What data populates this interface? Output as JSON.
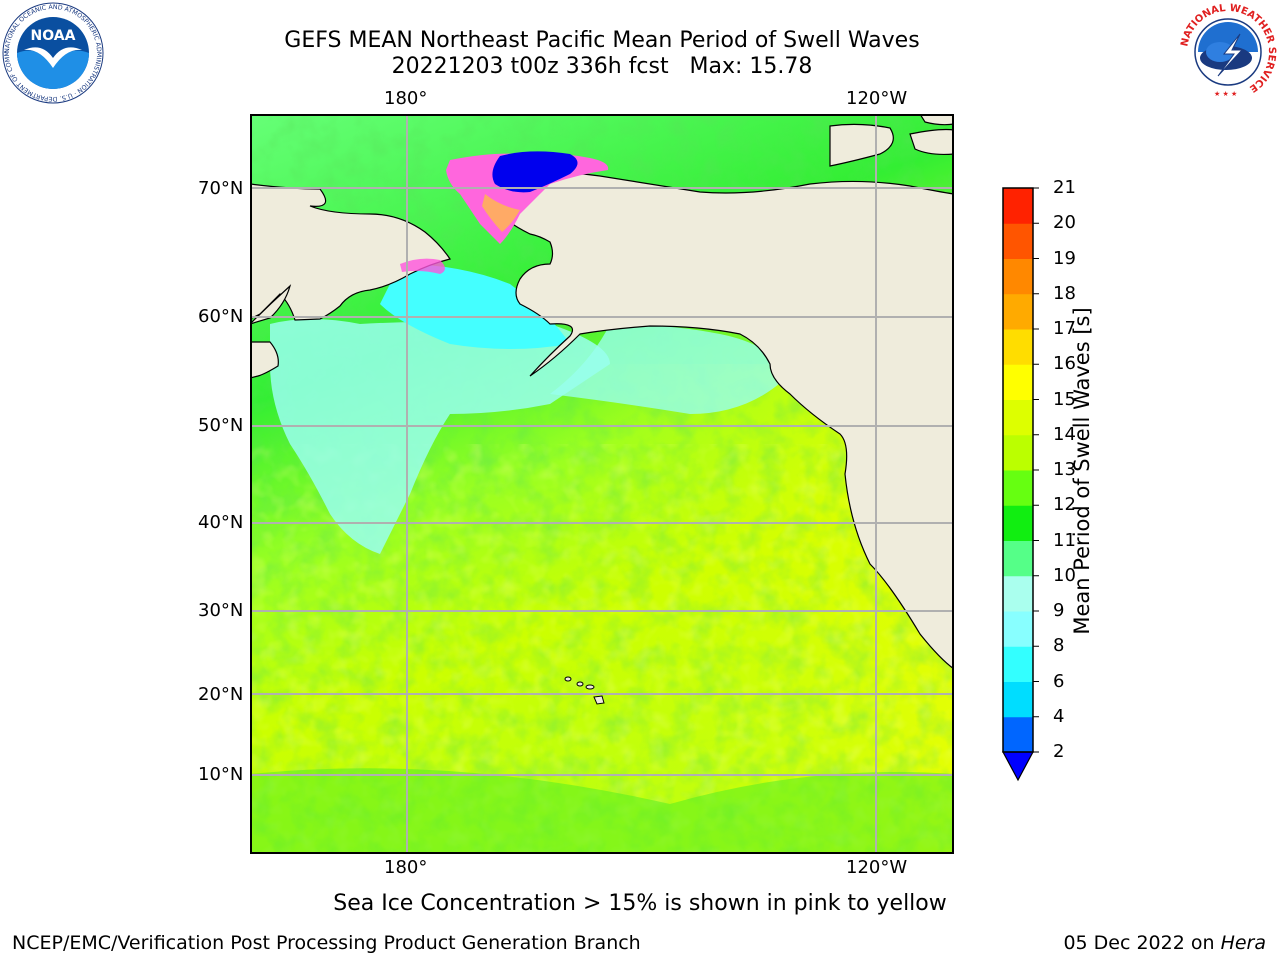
{
  "title": {
    "line1": "GEFS MEAN Northeast Pacific Mean Period of Swell Waves",
    "line2": "20221203 t00z 336h fcst   Max: 15.78"
  },
  "map": {
    "lon_ticks": [
      "180°",
      "120°W"
    ],
    "lat_ticks": [
      "70°N",
      "60°N",
      "50°N",
      "40°N",
      "30°N",
      "20°N",
      "10°N"
    ]
  },
  "colorbar": {
    "label": "Mean Period of Swell Waves [s]",
    "levels": [
      "2",
      "4",
      "6",
      "8",
      "9",
      "10",
      "11",
      "12",
      "13",
      "14",
      "15",
      "16",
      "17",
      "18",
      "19",
      "20",
      "21"
    ],
    "colors": [
      "#0066ff",
      "#00ddff",
      "#33ffff",
      "#88ffff",
      "#aaffee",
      "#55ff88",
      "#11ee11",
      "#66ff11",
      "#bbff00",
      "#ddff00",
      "#ffff00",
      "#ffdd00",
      "#ffaa00",
      "#ff8800",
      "#ff5500",
      "#ff2200",
      "#ff0000"
    ],
    "underflow_color": "#0000ff"
  },
  "note": "Sea Ice Concentration > 15% is shown in pink to yellow",
  "footer": {
    "left": "NCEP/EMC/Verification Post Processing Product Generation Branch",
    "right_prefix": "05 Dec 2022 on ",
    "right_host": "Hera"
  },
  "logos": {
    "noaa_text": "NOAA",
    "noaa_ring": "NATIONAL OCEANIC AND ATMOSPHERIC ADMINISTRATION · U.S. DEPARTMENT OF COMMERCE",
    "nws_ring": "NATIONAL WEATHER SERVICE"
  },
  "legend_colors": {
    "land": "#efecdc",
    "ice_pink": "#ff66dd",
    "ice_blue": "#0000ee",
    "grid": "#b0b0b0"
  }
}
